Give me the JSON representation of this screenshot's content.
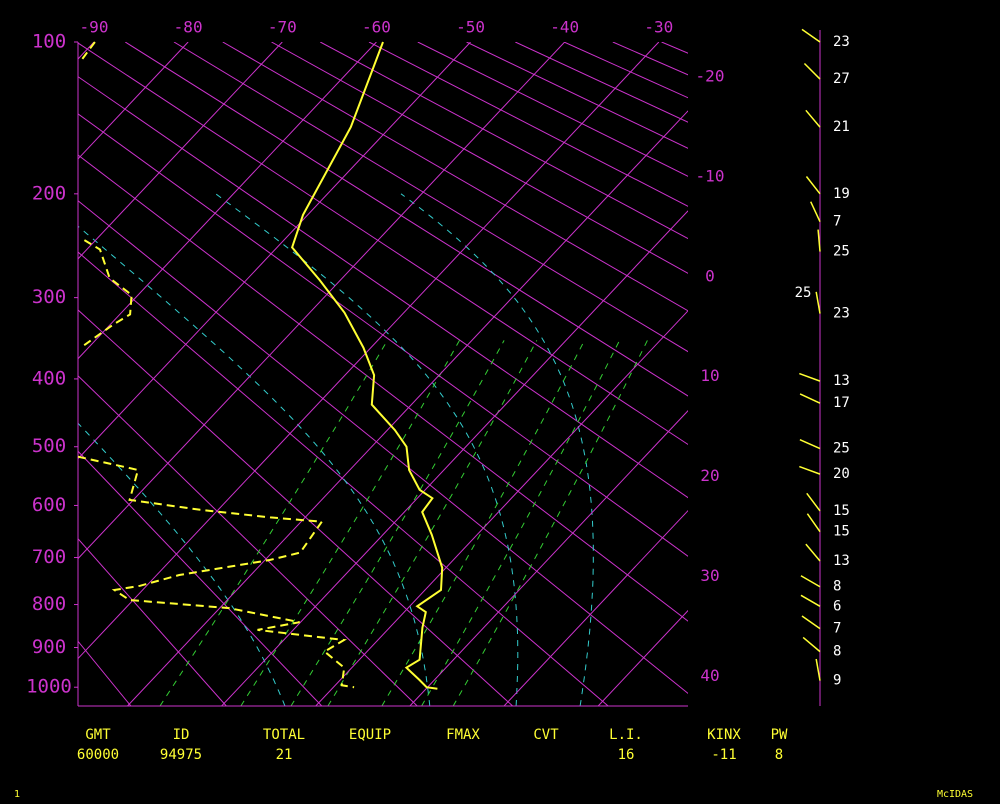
{
  "chart_data": {
    "type": "skewt",
    "ylim": [
      100,
      1050
    ],
    "yticks": [
      100,
      200,
      300,
      400,
      500,
      600,
      700,
      800,
      900,
      1000
    ],
    "xlim": [
      -91.7,
      -26.9
    ],
    "xticks": [
      -90,
      -80,
      -70,
      -60,
      -50,
      -40,
      -30,
      -20,
      -10,
      0,
      10,
      20,
      30,
      40
    ],
    "grid_color": "#cc33cc",
    "series": [
      {
        "color": "#ffff33",
        "pressure": [
          100,
          150,
          218,
          248,
          281,
          317,
          359,
          395,
          436,
          474,
          500,
          538,
          572,
          587,
          612,
          655,
          721,
          768,
          804,
          817,
          853,
          930,
          950,
          981,
          1000,
          1004
        ],
        "temperature": [
          -59.3,
          -54.2,
          -50.5,
          -48.4,
          -42.2,
          -36.3,
          -30.8,
          -26.9,
          -24.2,
          -19.2,
          -16.3,
          -13.7,
          -10.6,
          -8.4,
          -8.1,
          -4.8,
          -0.4,
          1.7,
          0.8,
          2.3,
          3.5,
          6.4,
          5.8,
          8.4,
          9.9,
          11.2
        ]
      },
      {
        "color": "#ffff33",
        "dashed": true,
        "pressure": [
          100,
          110,
          null,
          241,
          250,
          279,
          297,
          319,
          331,
          356,
          null,
          516,
          533,
          538,
          590,
          608,
          622,
          630,
          690,
          705,
          736,
          759,
          768,
          790,
          808,
          840,
          858,
          882,
          910,
          950,
          995,
          1000
        ],
        "temperature": [
          -89.9,
          -89.5,
          null,
          -71.2,
          -68.6,
          -64.7,
          -60.7,
          -58.9,
          -59.7,
          -60.7,
          null,
          -50.2,
          -44.2,
          -42.5,
          -40.4,
          -31.9,
          -23.7,
          -17.8,
          -17.0,
          -19.5,
          -27.6,
          -30.7,
          -33.0,
          -30.4,
          -19.0,
          -10.1,
          -13.8,
          -3.6,
          -4.5,
          -0.8,
          0.7,
          2.2
        ]
      }
    ],
    "winds": {
      "color": "#ffff33",
      "pressure": [
        100,
        120,
        150,
        200,
        224,
        252,
        318,
        403,
        434,
        503,
        545,
        610,
        649,
        707,
        761,
        804,
        855,
        910,
        983
      ],
      "direction": [
        305,
        315,
        320,
        322,
        335,
        355,
        350,
        290,
        295,
        294,
        290,
        323,
        325,
        320,
        300,
        300,
        305,
        310,
        350
      ],
      "speed": [
        23,
        27,
        21,
        19,
        7,
        25,
        23,
        13,
        17,
        25,
        20,
        15,
        15,
        13,
        8,
        6,
        7,
        8,
        9
      ]
    },
    "extra_wind_label": {
      "value": 25,
      "pressure": 295
    }
  },
  "indices": {
    "headers": [
      "GMT",
      "ID",
      "TOTAL",
      "EQUIP",
      "FMAX",
      "CVT",
      "L.I.",
      "KINX",
      "PW"
    ],
    "values": [
      "60000",
      "94975",
      21,
      null,
      null,
      null,
      16,
      -11,
      8
    ]
  },
  "footer": {
    "left": "1",
    "right": "McIDAS"
  }
}
